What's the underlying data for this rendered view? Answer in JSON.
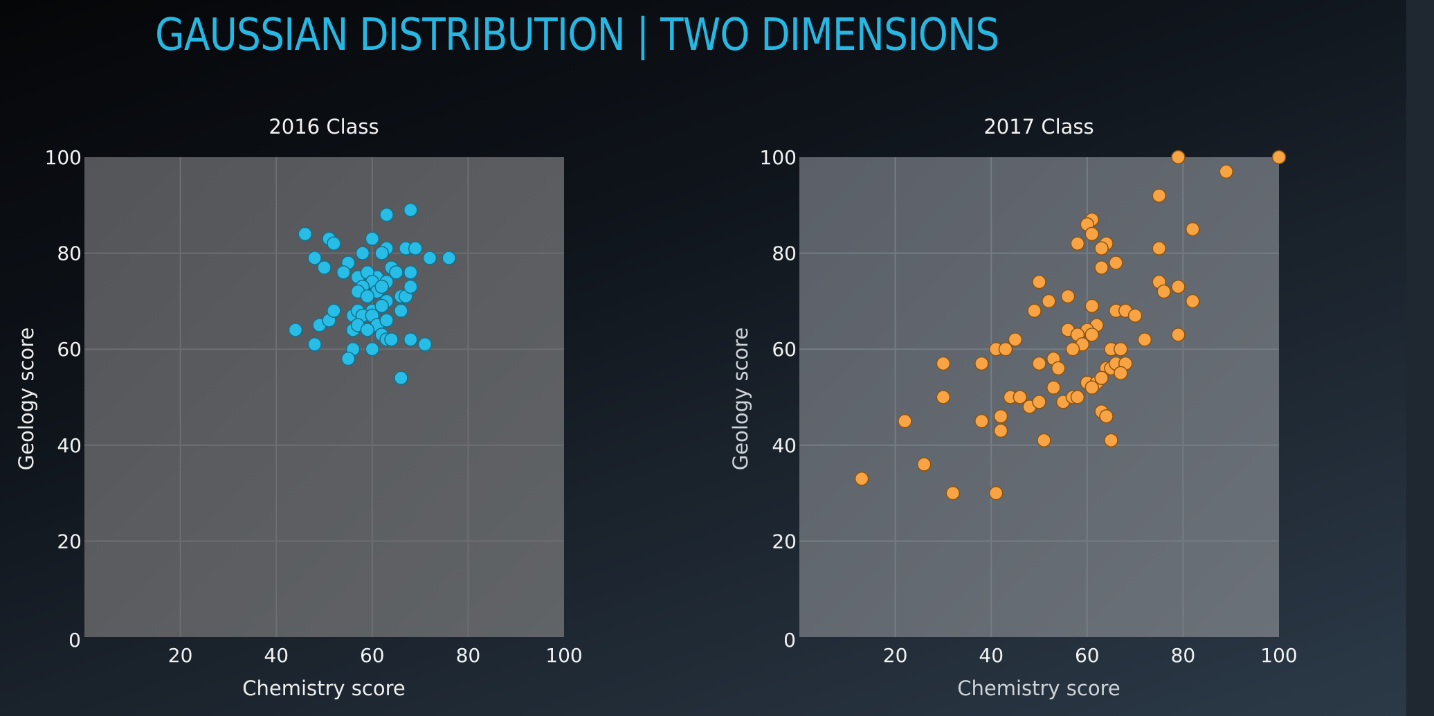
{
  "slide": {
    "title": "GAUSSIAN DISTRIBUTION | TWO DIMENSIONS"
  },
  "chart_data": [
    {
      "type": "scatter",
      "title": "2016 Class",
      "xlabel": "Chemistry score",
      "ylabel": "Geology score",
      "xlim": [
        0,
        100
      ],
      "ylim": [
        0,
        100
      ],
      "xticks": [
        "0",
        "20",
        "40",
        "60",
        "80",
        "100"
      ],
      "yticks": [
        "0",
        "20",
        "40",
        "60",
        "80",
        "100"
      ],
      "grid": true,
      "marker_color": "#27bde6",
      "marker_edge": "#14708c",
      "points": [
        [
          46,
          84
        ],
        [
          63,
          88
        ],
        [
          68,
          89
        ],
        [
          48,
          79
        ],
        [
          51,
          83
        ],
        [
          52,
          82
        ],
        [
          50,
          77
        ],
        [
          55,
          78
        ],
        [
          54,
          76
        ],
        [
          60,
          83
        ],
        [
          63,
          81
        ],
        [
          62,
          80
        ],
        [
          67,
          81
        ],
        [
          69,
          81
        ],
        [
          72,
          79
        ],
        [
          76,
          79
        ],
        [
          58,
          80
        ],
        [
          61,
          75
        ],
        [
          64,
          77
        ],
        [
          65,
          76
        ],
        [
          57,
          75
        ],
        [
          59,
          76
        ],
        [
          60,
          74
        ],
        [
          63,
          74
        ],
        [
          68,
          76
        ],
        [
          58,
          73
        ],
        [
          61,
          72
        ],
        [
          62,
          73
        ],
        [
          57,
          72
        ],
        [
          59,
          71
        ],
        [
          63,
          70
        ],
        [
          60,
          68
        ],
        [
          62,
          69
        ],
        [
          66,
          71
        ],
        [
          67,
          71
        ],
        [
          68,
          73
        ],
        [
          56,
          67
        ],
        [
          57,
          68
        ],
        [
          58,
          67
        ],
        [
          60,
          67
        ],
        [
          61,
          65
        ],
        [
          63,
          66
        ],
        [
          66,
          68
        ],
        [
          44,
          64
        ],
        [
          49,
          65
        ],
        [
          51,
          66
        ],
        [
          52,
          68
        ],
        [
          56,
          64
        ],
        [
          57,
          65
        ],
        [
          59,
          64
        ],
        [
          62,
          63
        ],
        [
          63,
          62
        ],
        [
          64,
          62
        ],
        [
          68,
          62
        ],
        [
          71,
          61
        ],
        [
          48,
          61
        ],
        [
          56,
          60
        ],
        [
          60,
          60
        ],
        [
          55,
          58
        ],
        [
          66,
          54
        ]
      ]
    },
    {
      "type": "scatter",
      "title": "2017 Class",
      "xlabel": "Chemistry score",
      "ylabel": "Geology score",
      "xlim": [
        0,
        100
      ],
      "ylim": [
        0,
        100
      ],
      "xticks": [
        "0",
        "20",
        "40",
        "60",
        "80",
        "100"
      ],
      "yticks": [
        "0",
        "20",
        "40",
        "60",
        "80",
        "100"
      ],
      "grid": true,
      "marker_color": "#f9a444",
      "marker_edge": "#8a5411",
      "points": [
        [
          79,
          100
        ],
        [
          100,
          100
        ],
        [
          89,
          97
        ],
        [
          75,
          92
        ],
        [
          82,
          85
        ],
        [
          61,
          87
        ],
        [
          60,
          86
        ],
        [
          61,
          84
        ],
        [
          58,
          82
        ],
        [
          64,
          82
        ],
        [
          63,
          81
        ],
        [
          75,
          81
        ],
        [
          66,
          78
        ],
        [
          63,
          77
        ],
        [
          50,
          74
        ],
        [
          75,
          74
        ],
        [
          76,
          72
        ],
        [
          79,
          73
        ],
        [
          56,
          71
        ],
        [
          52,
          70
        ],
        [
          61,
          69
        ],
        [
          82,
          70
        ],
        [
          49,
          68
        ],
        [
          66,
          68
        ],
        [
          68,
          68
        ],
        [
          70,
          67
        ],
        [
          62,
          65
        ],
        [
          60,
          64
        ],
        [
          56,
          64
        ],
        [
          58,
          63
        ],
        [
          61,
          63
        ],
        [
          59,
          61
        ],
        [
          57,
          60
        ],
        [
          72,
          62
        ],
        [
          79,
          63
        ],
        [
          41,
          60
        ],
        [
          43,
          60
        ],
        [
          45,
          62
        ],
        [
          65,
          60
        ],
        [
          67,
          60
        ],
        [
          30,
          57
        ],
        [
          38,
          57
        ],
        [
          50,
          57
        ],
        [
          53,
          58
        ],
        [
          54,
          56
        ],
        [
          64,
          56
        ],
        [
          65,
          56
        ],
        [
          66,
          57
        ],
        [
          68,
          57
        ],
        [
          67,
          55
        ],
        [
          60,
          53
        ],
        [
          62,
          53
        ],
        [
          63,
          54
        ],
        [
          53,
          52
        ],
        [
          61,
          52
        ],
        [
          44,
          50
        ],
        [
          46,
          50
        ],
        [
          55,
          49
        ],
        [
          57,
          50
        ],
        [
          58,
          50
        ],
        [
          48,
          48
        ],
        [
          50,
          49
        ],
        [
          30,
          50
        ],
        [
          22,
          45
        ],
        [
          38,
          45
        ],
        [
          42,
          46
        ],
        [
          63,
          47
        ],
        [
          64,
          46
        ],
        [
          42,
          43
        ],
        [
          51,
          41
        ],
        [
          65,
          41
        ],
        [
          26,
          36
        ],
        [
          13,
          33
        ],
        [
          32,
          30
        ],
        [
          41,
          30
        ]
      ]
    }
  ]
}
